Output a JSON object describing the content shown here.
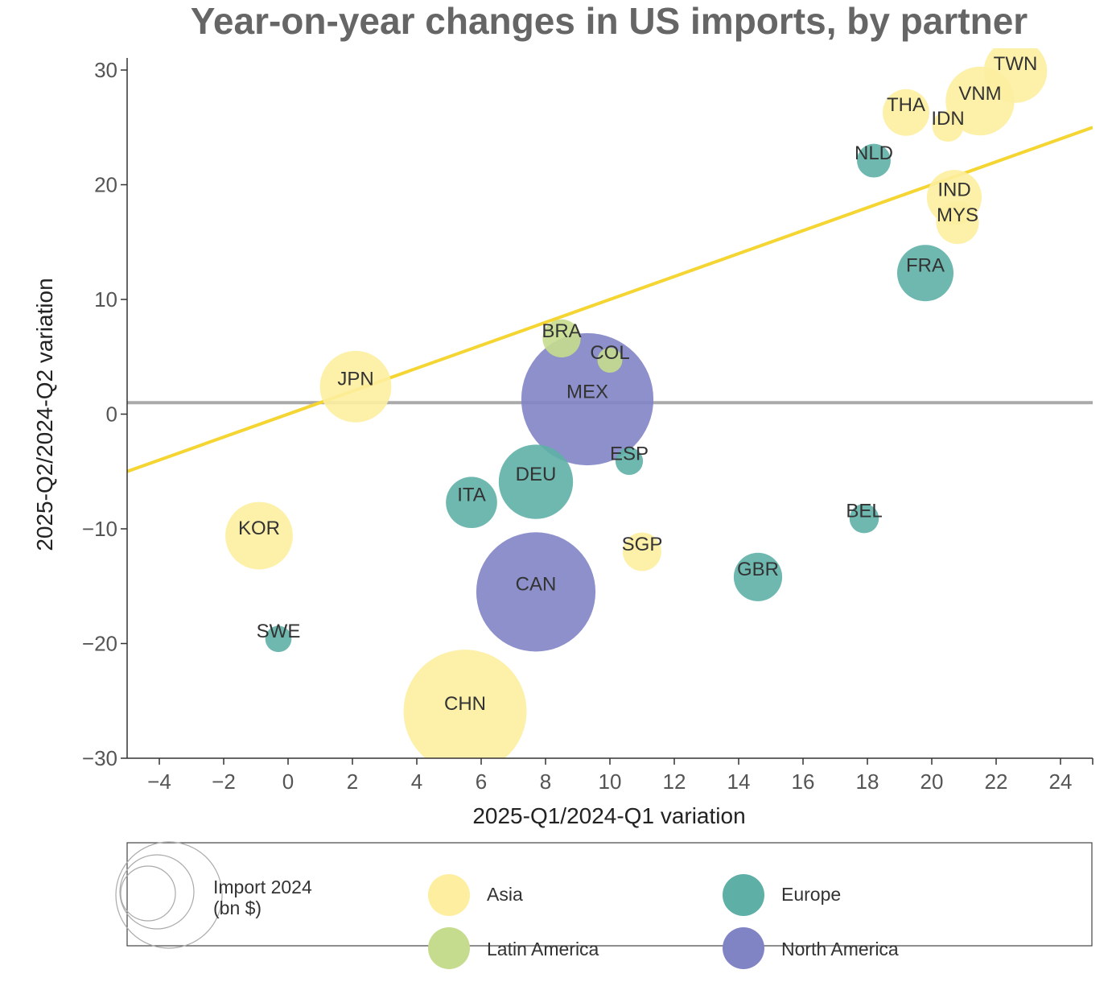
{
  "chart_data": {
    "type": "scatter",
    "title": "Year-on-year changes in US imports, by partner",
    "xlabel": "2025-Q1/2024-Q1 variation",
    "ylabel": "2025-Q2/2024-Q2 variation",
    "xlim": [
      -5,
      25
    ],
    "ylim": [
      -30,
      30
    ],
    "xticks": [
      -4,
      -2,
      0,
      2,
      4,
      6,
      8,
      10,
      12,
      14,
      16,
      18,
      20,
      22,
      24
    ],
    "yticks": [
      -30,
      -20,
      -10,
      0,
      10,
      20,
      30
    ],
    "xtick_labels": [
      "−4",
      "−2",
      "0",
      "2",
      "4",
      "6",
      "8",
      "10",
      "12",
      "14",
      "16",
      "18",
      "20",
      "22",
      "24"
    ],
    "ytick_labels": [
      "−30",
      "−20",
      "−10",
      "0",
      "10",
      "20",
      "30"
    ],
    "reference_lines": [
      {
        "type": "horizontal",
        "y": 1.0,
        "color": "#aaaaaa"
      },
      {
        "type": "diagonal",
        "from": [
          -5,
          -5
        ],
        "to": [
          25,
          25
        ],
        "color": "#f5d531"
      }
    ],
    "regions": [
      {
        "name": "Asia",
        "color": "#fdeea0"
      },
      {
        "name": "Europe",
        "color": "#5eb0a6"
      },
      {
        "name": "Latin America",
        "color": "#c5dc8e"
      },
      {
        "name": "North America",
        "color": "#8184c4"
      }
    ],
    "points": [
      {
        "label": "TWN",
        "x": 22.6,
        "y": 29.9,
        "region": "Asia",
        "import_2024": 116
      },
      {
        "label": "VNM",
        "x": 21.5,
        "y": 27.3,
        "region": "Asia",
        "import_2024": 137
      },
      {
        "label": "THA",
        "x": 19.2,
        "y": 26.3,
        "region": "Asia",
        "import_2024": 63
      },
      {
        "label": "IDN",
        "x": 20.5,
        "y": 25.1,
        "region": "Asia",
        "import_2024": 28
      },
      {
        "label": "NLD",
        "x": 18.2,
        "y": 22.1,
        "region": "Europe",
        "import_2024": 33
      },
      {
        "label": "IND",
        "x": 20.7,
        "y": 18.9,
        "region": "Asia",
        "import_2024": 87
      },
      {
        "label": "MYS",
        "x": 20.8,
        "y": 16.7,
        "region": "Asia",
        "import_2024": 53
      },
      {
        "label": "FRA",
        "x": 19.8,
        "y": 12.3,
        "region": "Europe",
        "import_2024": 92
      },
      {
        "label": "BRA",
        "x": 8.5,
        "y": 6.6,
        "region": "Latin America",
        "import_2024": 42
      },
      {
        "label": "COL",
        "x": 10.0,
        "y": 4.7,
        "region": "Latin America",
        "import_2024": 18
      },
      {
        "label": "JPN",
        "x": 2.1,
        "y": 2.4,
        "region": "Asia",
        "import_2024": 148
      },
      {
        "label": "MEX",
        "x": 9.3,
        "y": 1.3,
        "region": "North America",
        "import_2024": 506
      },
      {
        "label": "ESP",
        "x": 10.6,
        "y": -4.1,
        "region": "Europe",
        "import_2024": 22
      },
      {
        "label": "DEU",
        "x": 7.7,
        "y": -5.9,
        "region": "Europe",
        "import_2024": 160
      },
      {
        "label": "ITA",
        "x": 5.7,
        "y": -7.7,
        "region": "Europe",
        "import_2024": 76
      },
      {
        "label": "BEL",
        "x": 17.9,
        "y": -9.1,
        "region": "Europe",
        "import_2024": 25
      },
      {
        "label": "KOR",
        "x": -0.9,
        "y": -10.6,
        "region": "Asia",
        "import_2024": 132
      },
      {
        "label": "SGP",
        "x": 11.0,
        "y": -12.0,
        "region": "Asia",
        "import_2024": 43
      },
      {
        "label": "GBR",
        "x": 14.6,
        "y": -14.2,
        "region": "Europe",
        "import_2024": 68
      },
      {
        "label": "CAN",
        "x": 7.7,
        "y": -15.5,
        "region": "North America",
        "import_2024": 412
      },
      {
        "label": "SWE",
        "x": -0.3,
        "y": -19.6,
        "region": "Europe",
        "import_2024": 20
      },
      {
        "label": "CHN",
        "x": 5.5,
        "y": -25.9,
        "region": "Asia",
        "import_2024": 439
      }
    ],
    "size_legend": {
      "title_line1": "Import 2024",
      "title_line2": "(bn $)"
    }
  }
}
